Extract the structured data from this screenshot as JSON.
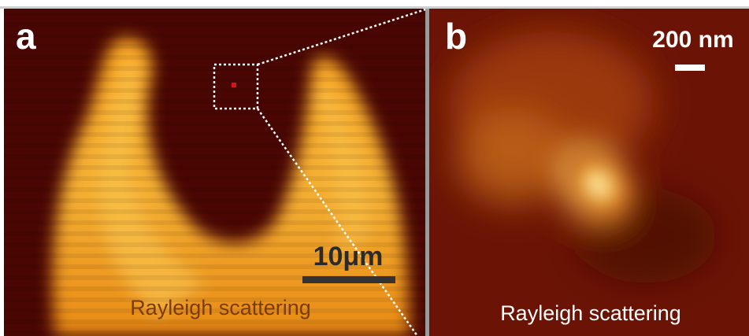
{
  "panels": [
    {
      "label": "a",
      "scale_bar": "10μm",
      "caption": "Rayleigh scattering"
    },
    {
      "label": "b",
      "scale_bar": "200 nm",
      "caption": "Rayleigh scattering"
    }
  ]
}
